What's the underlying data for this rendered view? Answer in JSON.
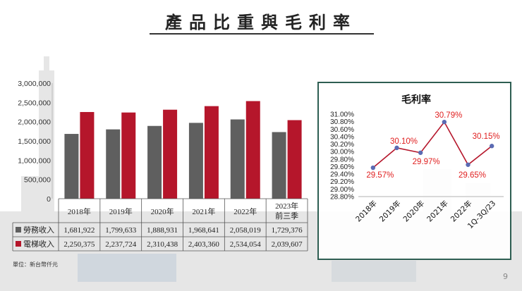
{
  "slide": {
    "title": "產品比重與毛利率",
    "page_number": "9",
    "unit_note": "單位：新台幣仟元"
  },
  "colors": {
    "service": "#5f5f5f",
    "elevator": "#b5162b",
    "panel_border": "#2e5e52",
    "margin_line": "#b5162b",
    "margin_point": "#5b6bb3",
    "margin_label": "#e02020"
  },
  "chart_data": [
    {
      "type": "bar",
      "categories": [
        "2018年",
        "2019年",
        "2020年",
        "2021年",
        "2022年",
        "2023年\n前三季"
      ],
      "series": [
        {
          "name": "勞務收入",
          "values": [
            1681922,
            1799633,
            1888931,
            1968641,
            2058019,
            1729376
          ]
        },
        {
          "name": "電梯收入",
          "values": [
            2250375,
            2237724,
            2310438,
            2403360,
            2534054,
            2039607
          ]
        }
      ],
      "y_ticks": [
        "3,000,000",
        "2,500,000",
        "2,000,000",
        "1,500,000",
        "1,000,000",
        "500,000",
        "0"
      ],
      "ylim": [
        0,
        3000000
      ],
      "table": {
        "rows": [
          {
            "label": "勞務收入",
            "cells": [
              "1,681,922",
              "1,799,633",
              "1,888,931",
              "1,968,641",
              "2,058,019",
              "1,729,376"
            ]
          },
          {
            "label": "電梯收入",
            "cells": [
              "2,250,375",
              "2,237,724",
              "2,310,438",
              "2,403,360",
              "2,534,054",
              "2,039,607"
            ]
          }
        ]
      }
    },
    {
      "type": "line",
      "title": "毛利率",
      "categories": [
        "2018年",
        "2019年",
        "2020年",
        "2021年",
        "2022年",
        "1Q-3Q/23"
      ],
      "values": [
        29.57,
        30.1,
        29.97,
        30.79,
        29.65,
        30.15
      ],
      "labels": [
        "29.57%",
        "30.10%",
        "29.97%",
        "30.79%",
        "29.65%",
        "30.15%"
      ],
      "y_ticks": [
        "31.00%",
        "30.80%",
        "30.60%",
        "30.40%",
        "30.20%",
        "30.00%",
        "29.80%",
        "29.60%",
        "29.40%",
        "29.20%",
        "29.00%",
        "28.80%"
      ],
      "ylim": [
        28.8,
        31.0
      ]
    }
  ]
}
